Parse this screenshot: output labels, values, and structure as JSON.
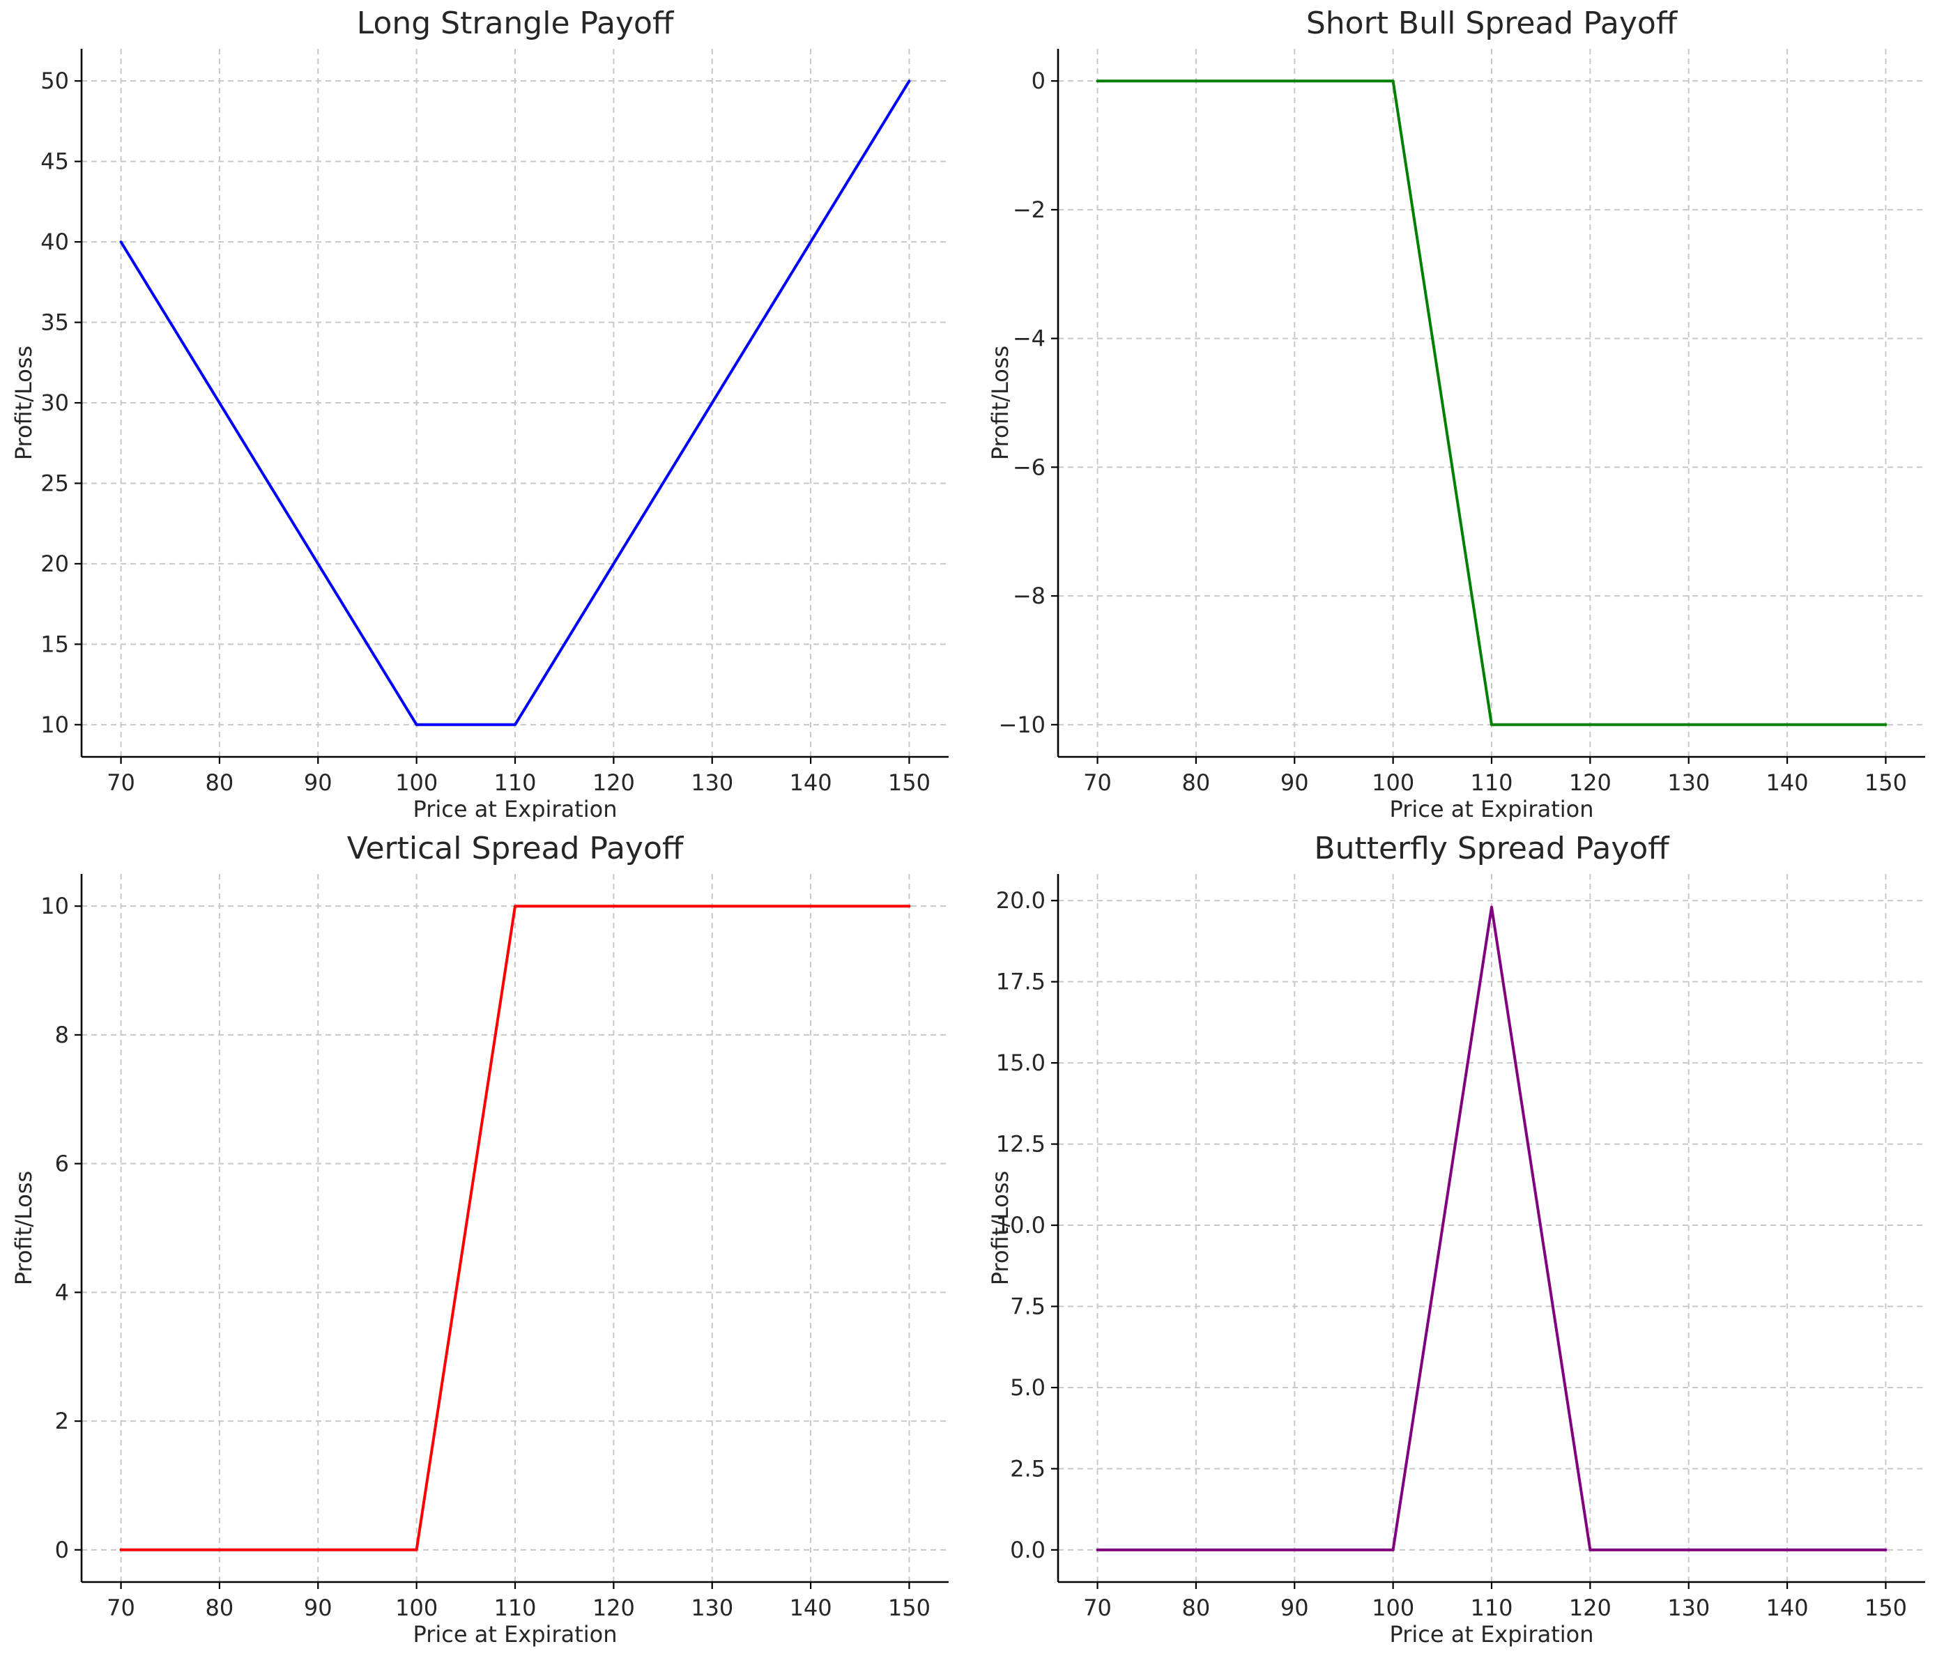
{
  "chart_data": [
    {
      "type": "line",
      "title": "Long Strangle Payoff",
      "xlabel": "Price at Expiration",
      "ylabel": "Profit/Loss",
      "xlim": [
        66,
        154
      ],
      "ylim": [
        8,
        52
      ],
      "xticks": [
        70,
        80,
        90,
        100,
        110,
        120,
        130,
        140,
        150
      ],
      "yticks": [
        10,
        15,
        20,
        25,
        30,
        35,
        40,
        45,
        50
      ],
      "ytick_labels": [
        "10",
        "15",
        "20",
        "25",
        "30",
        "35",
        "40",
        "45",
        "50"
      ],
      "grid": true,
      "series": [
        {
          "color": "#0000ff",
          "x": [
            70,
            100,
            110,
            150
          ],
          "y": [
            40,
            10,
            10,
            50
          ]
        }
      ]
    },
    {
      "type": "line",
      "title": "Short Bull Spread Payoff",
      "xlabel": "Price at Expiration",
      "ylabel": "Profit/Loss",
      "xlim": [
        66,
        154
      ],
      "ylim": [
        -10.5,
        0.5
      ],
      "xticks": [
        70,
        80,
        90,
        100,
        110,
        120,
        130,
        140,
        150
      ],
      "yticks": [
        0,
        -2,
        -4,
        -6,
        -8,
        -10
      ],
      "ytick_labels": [
        "0",
        "−2",
        "−4",
        "−6",
        "−8",
        "−10"
      ],
      "grid": true,
      "series": [
        {
          "color": "#008000",
          "x": [
            70,
            100,
            110,
            150
          ],
          "y": [
            0,
            0,
            -10,
            -10
          ]
        }
      ]
    },
    {
      "type": "line",
      "title": "Vertical Spread Payoff",
      "xlabel": "Price at Expiration",
      "ylabel": "Profit/Loss",
      "xlim": [
        66,
        154
      ],
      "ylim": [
        -0.5,
        10.5
      ],
      "xticks": [
        70,
        80,
        90,
        100,
        110,
        120,
        130,
        140,
        150
      ],
      "yticks": [
        0,
        2,
        4,
        6,
        8,
        10
      ],
      "ytick_labels": [
        "0",
        "2",
        "4",
        "6",
        "8",
        "10"
      ],
      "grid": true,
      "series": [
        {
          "color": "#ff0000",
          "x": [
            70,
            100,
            110,
            150
          ],
          "y": [
            0,
            0,
            10,
            10
          ]
        }
      ]
    },
    {
      "type": "line",
      "title": "Butterfly Spread Payoff",
      "xlabel": "Price at Expiration",
      "ylabel": "Profit/Loss",
      "xlim": [
        66,
        154
      ],
      "ylim": [
        -0.99,
        20.82
      ],
      "xticks": [
        70,
        80,
        90,
        100,
        110,
        120,
        130,
        140,
        150
      ],
      "yticks": [
        0,
        2.5,
        5,
        7.5,
        10,
        12.5,
        15,
        17.5,
        20
      ],
      "ytick_labels": [
        "0.0",
        "2.5",
        "5.0",
        "7.5",
        "10.0",
        "12.5",
        "15.0",
        "17.5",
        "20.0"
      ],
      "grid": true,
      "series": [
        {
          "color": "#800080",
          "x": [
            70,
            100,
            110,
            120,
            150
          ],
          "y": [
            0,
            0,
            19.8,
            0,
            0
          ]
        }
      ]
    }
  ]
}
